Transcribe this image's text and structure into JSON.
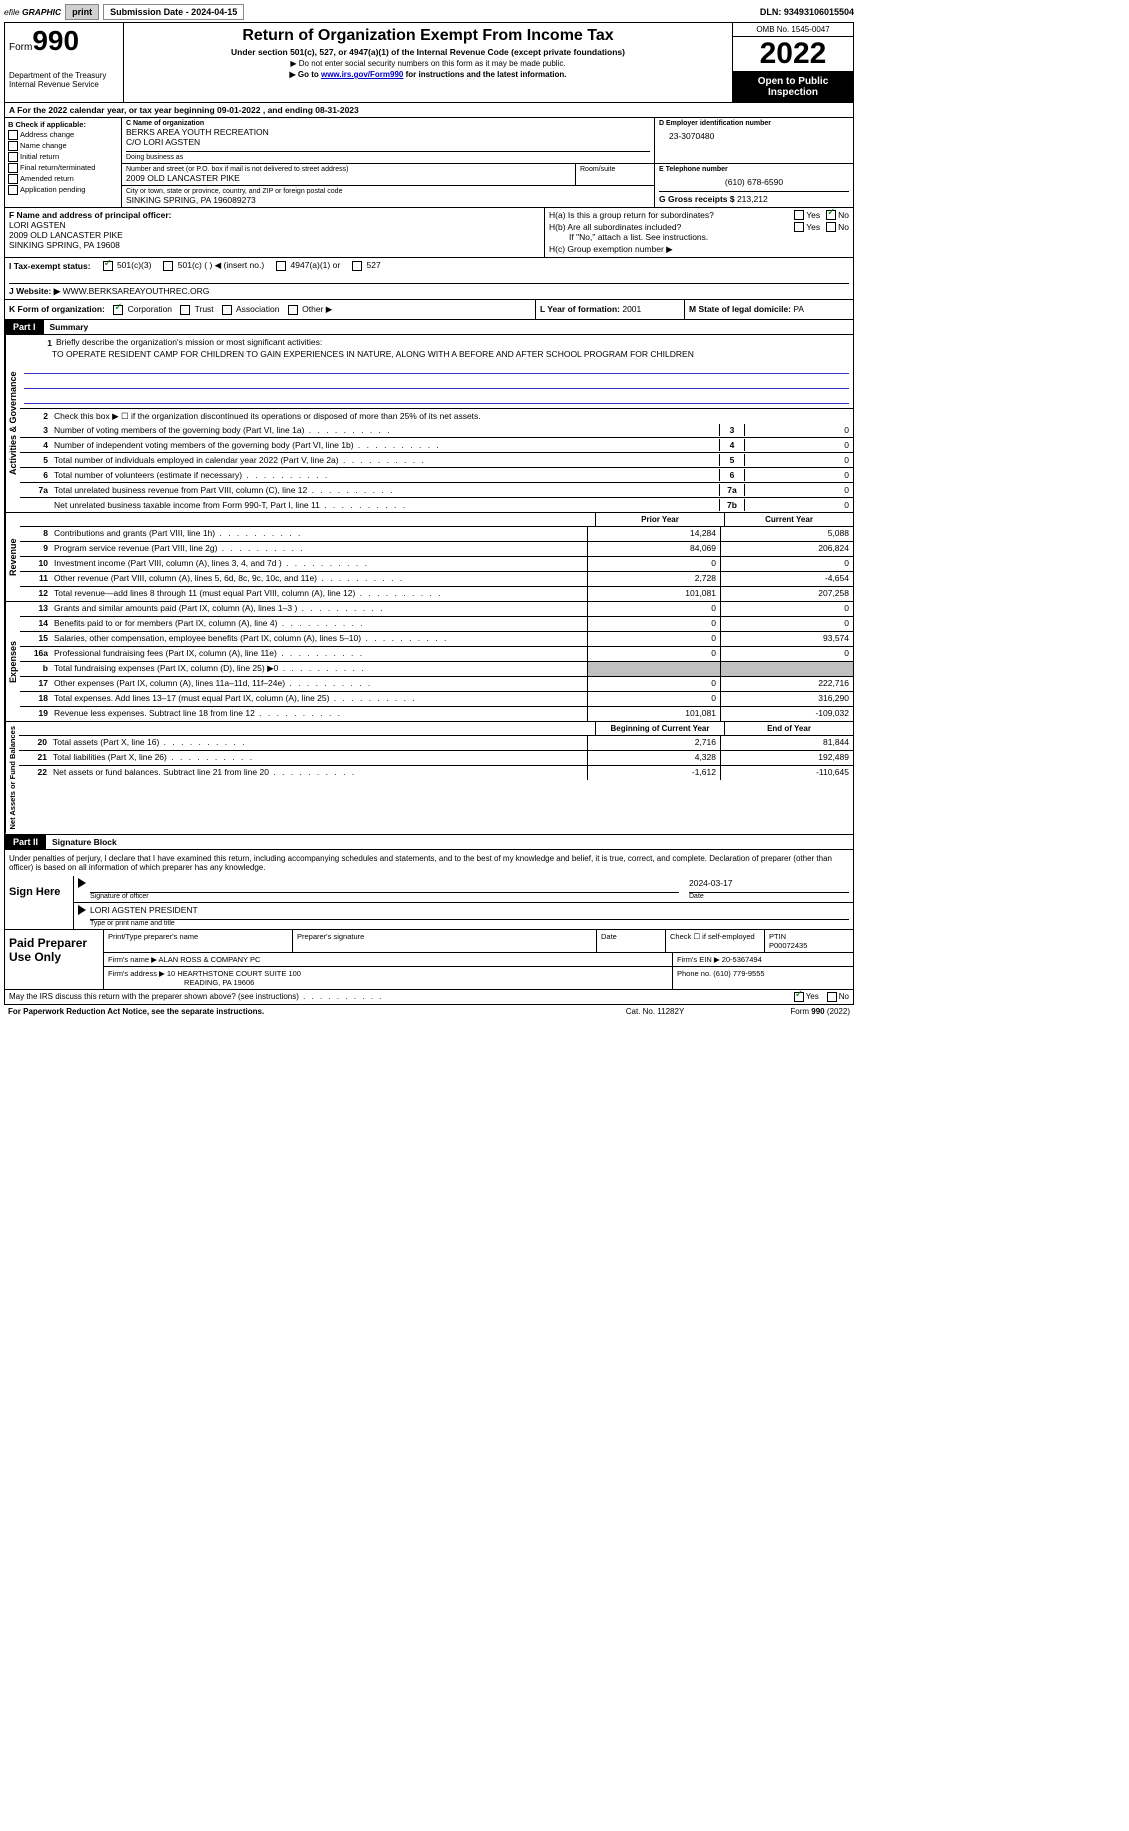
{
  "topbar": {
    "efile_prefix": "efile",
    "efile_graphic": "GRAPHIC",
    "print_btn": "print",
    "submission_label": "Submission Date - 2024-04-15",
    "dln_label": "DLN: 93493106015504"
  },
  "header": {
    "form_word": "Form",
    "form_num": "990",
    "dept": "Department of the Treasury",
    "irs": "Internal Revenue Service",
    "title": "Return of Organization Exempt From Income Tax",
    "subtitle": "Under section 501(c), 527, or 4947(a)(1) of the Internal Revenue Code (except private foundations)",
    "line1_prefix": "▶ Do not enter social security numbers on this form as it may be made public.",
    "line2_prefix": "▶ Go to ",
    "line2_link": "www.irs.gov/Form990",
    "line2_suffix": " for instructions and the latest information.",
    "omb": "OMB No. 1545-0047",
    "year": "2022",
    "open": "Open to Public Inspection"
  },
  "cal_year": "A For the 2022 calendar year, or tax year beginning 09-01-2022    , and ending 08-31-2023",
  "section_b": {
    "label": "B Check if applicable:",
    "items": [
      "Address change",
      "Name change",
      "Initial return",
      "Final return/terminated",
      "Amended return",
      "Application pending"
    ]
  },
  "section_c": {
    "name_label": "C Name of organization",
    "name1": "BERKS AREA YOUTH RECREATION",
    "name2": "C/O LORI AGSTEN",
    "dba_label": "Doing business as",
    "addr_label": "Number and street (or P.O. box if mail is not delivered to street address)",
    "addr": "2009 OLD LANCASTER PIKE",
    "room_label": "Room/suite",
    "city_label": "City or town, state or province, country, and ZIP or foreign postal code",
    "city": "SINKING SPRING, PA  196089273"
  },
  "section_d": {
    "label": "D Employer identification number",
    "ein": "23-3070480"
  },
  "section_e": {
    "label": "E Telephone number",
    "phone": "(610) 678-6590"
  },
  "section_g": {
    "label": "G Gross receipts $ ",
    "amount": "213,212"
  },
  "section_f": {
    "label": "F Name and address of principal officer:",
    "name": "LORI AGSTEN",
    "addr1": "2009 OLD LANCASTER PIKE",
    "addr2": "SINKING SPRING, PA  19608"
  },
  "section_h": {
    "ha_label": "H(a)  Is this a group return for subordinates?",
    "hb_label": "H(b)  Are all subordinates included?",
    "hb_note": "If \"No,\" attach a list. See instructions.",
    "hc_label": "H(c)  Group exemption number ▶",
    "yes": "Yes",
    "no": "No"
  },
  "section_i": {
    "label": "I Tax-exempt status:",
    "opt1": "501(c)(3)",
    "opt2": "501(c) (   ) ◀ (insert no.)",
    "opt3": "4947(a)(1) or",
    "opt4": "527"
  },
  "section_j": {
    "label": "J Website: ▶",
    "url": "WWW.BERKSAREAYOUTHREC.ORG"
  },
  "section_k": {
    "label": "K Form of organization:",
    "opts": [
      "Corporation",
      "Trust",
      "Association",
      "Other ▶"
    ]
  },
  "section_l": {
    "label": "L Year of formation: ",
    "val": "2001"
  },
  "section_m": {
    "label": "M State of legal domicile: ",
    "val": "PA"
  },
  "part1": {
    "hdr": "Part I",
    "title": "Summary",
    "side_ag": "Activities & Governance",
    "side_rev": "Revenue",
    "side_exp": "Expenses",
    "side_net": "Net Assets or Fund Balances",
    "q1_label": "Briefly describe the organization's mission or most significant activities:",
    "q1_text": "TO OPERATE RESIDENT CAMP FOR CHILDREN TO GAIN EXPERIENCES IN NATURE, ALONG WITH A BEFORE AND AFTER SCHOOL PROGRAM FOR CHILDREN",
    "q2": "Check this box ▶ ☐  if the organization discontinued its operations or disposed of more than 25% of its net assets.",
    "rows_ag": [
      {
        "n": "3",
        "t": "Number of voting members of the governing body (Part VI, line 1a)",
        "box": "3",
        "v": "0"
      },
      {
        "n": "4",
        "t": "Number of independent voting members of the governing body (Part VI, line 1b)",
        "box": "4",
        "v": "0"
      },
      {
        "n": "5",
        "t": "Total number of individuals employed in calendar year 2022 (Part V, line 2a)",
        "box": "5",
        "v": "0"
      },
      {
        "n": "6",
        "t": "Total number of volunteers (estimate if necessary)",
        "box": "6",
        "v": "0"
      },
      {
        "n": "7a",
        "t": "Total unrelated business revenue from Part VIII, column (C), line 12",
        "box": "7a",
        "v": "0"
      },
      {
        "n": "",
        "t": "Net unrelated business taxable income from Form 990-T, Part I, line 11",
        "box": "7b",
        "v": "0"
      }
    ],
    "hdr_prior": "Prior Year",
    "hdr_curr": "Current Year",
    "hdr_begin": "Beginning of Current Year",
    "hdr_end": "End of Year",
    "rows_rev": [
      {
        "n": "8",
        "t": "Contributions and grants (Part VIII, line 1h)",
        "p": "14,284",
        "c": "5,088"
      },
      {
        "n": "9",
        "t": "Program service revenue (Part VIII, line 2g)",
        "p": "84,069",
        "c": "206,824"
      },
      {
        "n": "10",
        "t": "Investment income (Part VIII, column (A), lines 3, 4, and 7d )",
        "p": "0",
        "c": "0"
      },
      {
        "n": "11",
        "t": "Other revenue (Part VIII, column (A), lines 5, 6d, 8c, 9c, 10c, and 11e)",
        "p": "2,728",
        "c": "-4,654"
      },
      {
        "n": "12",
        "t": "Total revenue—add lines 8 through 11 (must equal Part VIII, column (A), line 12)",
        "p": "101,081",
        "c": "207,258"
      }
    ],
    "rows_exp": [
      {
        "n": "13",
        "t": "Grants and similar amounts paid (Part IX, column (A), lines 1–3 )",
        "p": "0",
        "c": "0"
      },
      {
        "n": "14",
        "t": "Benefits paid to or for members (Part IX, column (A), line 4)",
        "p": "0",
        "c": "0"
      },
      {
        "n": "15",
        "t": "Salaries, other compensation, employee benefits (Part IX, column (A), lines 5–10)",
        "p": "0",
        "c": "93,574"
      },
      {
        "n": "16a",
        "t": "Professional fundraising fees (Part IX, column (A), line 11e)",
        "p": "0",
        "c": "0"
      },
      {
        "n": "b",
        "t": "Total fundraising expenses (Part IX, column (D), line 25) ▶0",
        "p": "gray",
        "c": "gray"
      },
      {
        "n": "17",
        "t": "Other expenses (Part IX, column (A), lines 11a–11d, 11f–24e)",
        "p": "0",
        "c": "222,716"
      },
      {
        "n": "18",
        "t": "Total expenses. Add lines 13–17 (must equal Part IX, column (A), line 25)",
        "p": "0",
        "c": "316,290"
      },
      {
        "n": "19",
        "t": "Revenue less expenses. Subtract line 18 from line 12",
        "p": "101,081",
        "c": "-109,032"
      }
    ],
    "rows_net": [
      {
        "n": "20",
        "t": "Total assets (Part X, line 16)",
        "p": "2,716",
        "c": "81,844"
      },
      {
        "n": "21",
        "t": "Total liabilities (Part X, line 26)",
        "p": "4,328",
        "c": "192,489"
      },
      {
        "n": "22",
        "t": "Net assets or fund balances. Subtract line 21 from line 20",
        "p": "-1,612",
        "c": "-110,645"
      }
    ]
  },
  "part2": {
    "hdr": "Part II",
    "title": "Signature Block",
    "penalty": "Under penalties of perjury, I declare that I have examined this return, including accompanying schedules and statements, and to the best of my knowledge and belief, it is true, correct, and complete. Declaration of preparer (other than officer) is based on all information of which preparer has any knowledge.",
    "sign_here": "Sign Here",
    "sig_officer": "Signature of officer",
    "sig_date": "2024-03-17",
    "date_label": "Date",
    "officer_name": "LORI AGSTEN PRESIDENT",
    "type_label": "Type or print name and title"
  },
  "paid": {
    "label": "Paid Preparer Use Only",
    "print_label": "Print/Type preparer's name",
    "sig_label": "Preparer's signature",
    "date_label": "Date",
    "check_label": "Check ☐ if self-employed",
    "ptin_label": "PTIN",
    "ptin": "P00072435",
    "firm_name_label": "Firm's name    ▶",
    "firm_name": "ALAN ROSS & COMPANY PC",
    "firm_ein_label": "Firm's EIN ▶",
    "firm_ein": "20-5367494",
    "firm_addr_label": "Firm's address ▶",
    "firm_addr1": "10 HEARTHSTONE COURT SUITE 100",
    "firm_addr2": "READING, PA  19606",
    "phone_label": "Phone no. ",
    "phone": "(610) 779-9555"
  },
  "footer": {
    "discuss": "May the IRS discuss this return with the preparer shown above? (see instructions)",
    "yes": "Yes",
    "no": "No",
    "paperwork": "For Paperwork Reduction Act Notice, see the separate instructions.",
    "cat": "Cat. No. 11282Y",
    "form": "Form 990 (2022)"
  },
  "colors": {
    "link": "#0000cc",
    "check": "#008000"
  }
}
